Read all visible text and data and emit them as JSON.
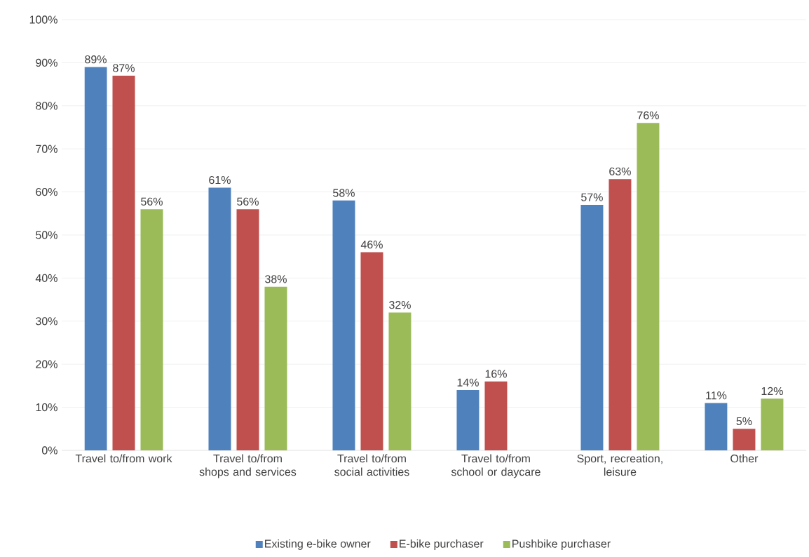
{
  "chart_data": {
    "type": "bar",
    "categories": [
      "Travel to/from work",
      "Travel to/from shops and services",
      "Travel to/from social activities",
      "Travel to/from school or daycare",
      "Sport, recreation, leisure",
      "Other"
    ],
    "series": [
      {
        "name": "Existing e-bike owner",
        "color": "#4f81bd",
        "values": [
          89,
          61,
          58,
          14,
          57,
          11
        ],
        "value_labels": [
          "89%",
          "61%",
          "58%",
          "14%",
          "57%",
          "11%"
        ]
      },
      {
        "name": "E-bike purchaser",
        "color": "#c0504d",
        "values": [
          87,
          56,
          46,
          16,
          63,
          5
        ],
        "value_labels": [
          "87%",
          "56%",
          "46%",
          "16%",
          "63%",
          "5%"
        ]
      },
      {
        "name": "Pushbike purchaser",
        "color": "#9bbb59",
        "values": [
          56,
          38,
          32,
          null,
          76,
          12
        ],
        "value_labels": [
          "56%",
          "38%",
          "32%",
          null,
          "76%",
          "12%"
        ]
      }
    ],
    "ylim": [
      0,
      100
    ],
    "yticks": [
      {
        "value": 0,
        "label": "0%"
      },
      {
        "value": 10,
        "label": "10%"
      },
      {
        "value": 20,
        "label": "20%"
      },
      {
        "value": 30,
        "label": "30%"
      },
      {
        "value": 40,
        "label": "40%"
      },
      {
        "value": 50,
        "label": "50%"
      },
      {
        "value": 60,
        "label": "60%"
      },
      {
        "value": 70,
        "label": "70%"
      },
      {
        "value": 80,
        "label": "80%"
      },
      {
        "value": 90,
        "label": "90%"
      },
      {
        "value": 100,
        "label": "100%"
      }
    ],
    "grid": "y",
    "legend": "bottom"
  }
}
